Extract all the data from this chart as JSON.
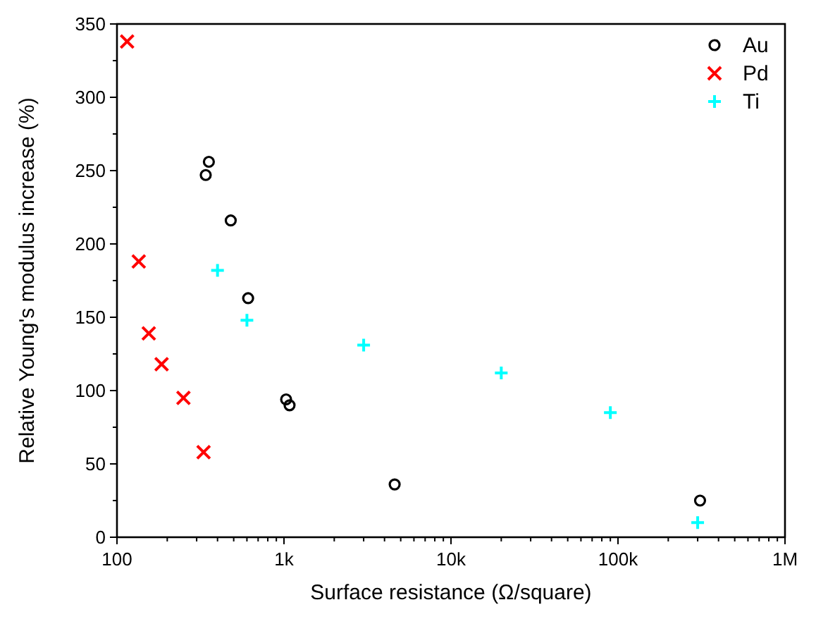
{
  "chart_data": {
    "type": "scatter",
    "xlabel": "Surface resistance (Ω/square)",
    "ylabel": "Relative Young's modulus increase (%)",
    "log": "x",
    "xlim": [
      100,
      1000000
    ],
    "xticks": [
      {
        "value": 100,
        "label": "100"
      },
      {
        "value": 1000,
        "label": "1k"
      },
      {
        "value": 10000,
        "label": "10k"
      },
      {
        "value": 100000,
        "label": "100k"
      },
      {
        "value": 1000000,
        "label": "1M"
      }
    ],
    "ylim": [
      0,
      350
    ],
    "yticks": [
      0,
      50,
      100,
      150,
      200,
      250,
      300,
      350
    ],
    "grid": false,
    "legend": "top right",
    "series": [
      {
        "name": "Au",
        "color": "#000000",
        "marker": "circle",
        "x": [
          340,
          355,
          480,
          610,
          1030,
          1080,
          4600,
          310000
        ],
        "values": [
          247,
          256,
          216,
          163,
          94,
          90,
          36,
          25
        ]
      },
      {
        "name": "Pd",
        "color": "#ff0000",
        "marker": "cross",
        "x": [
          115,
          135,
          155,
          185,
          250,
          330
        ],
        "values": [
          338,
          188,
          139,
          118,
          95,
          58
        ]
      },
      {
        "name": "Ti",
        "color": "#00ffff",
        "marker": "plus",
        "x": [
          400,
          600,
          3000,
          20000,
          90000,
          300000
        ],
        "values": [
          182,
          148,
          131,
          112,
          85,
          10
        ]
      }
    ]
  }
}
